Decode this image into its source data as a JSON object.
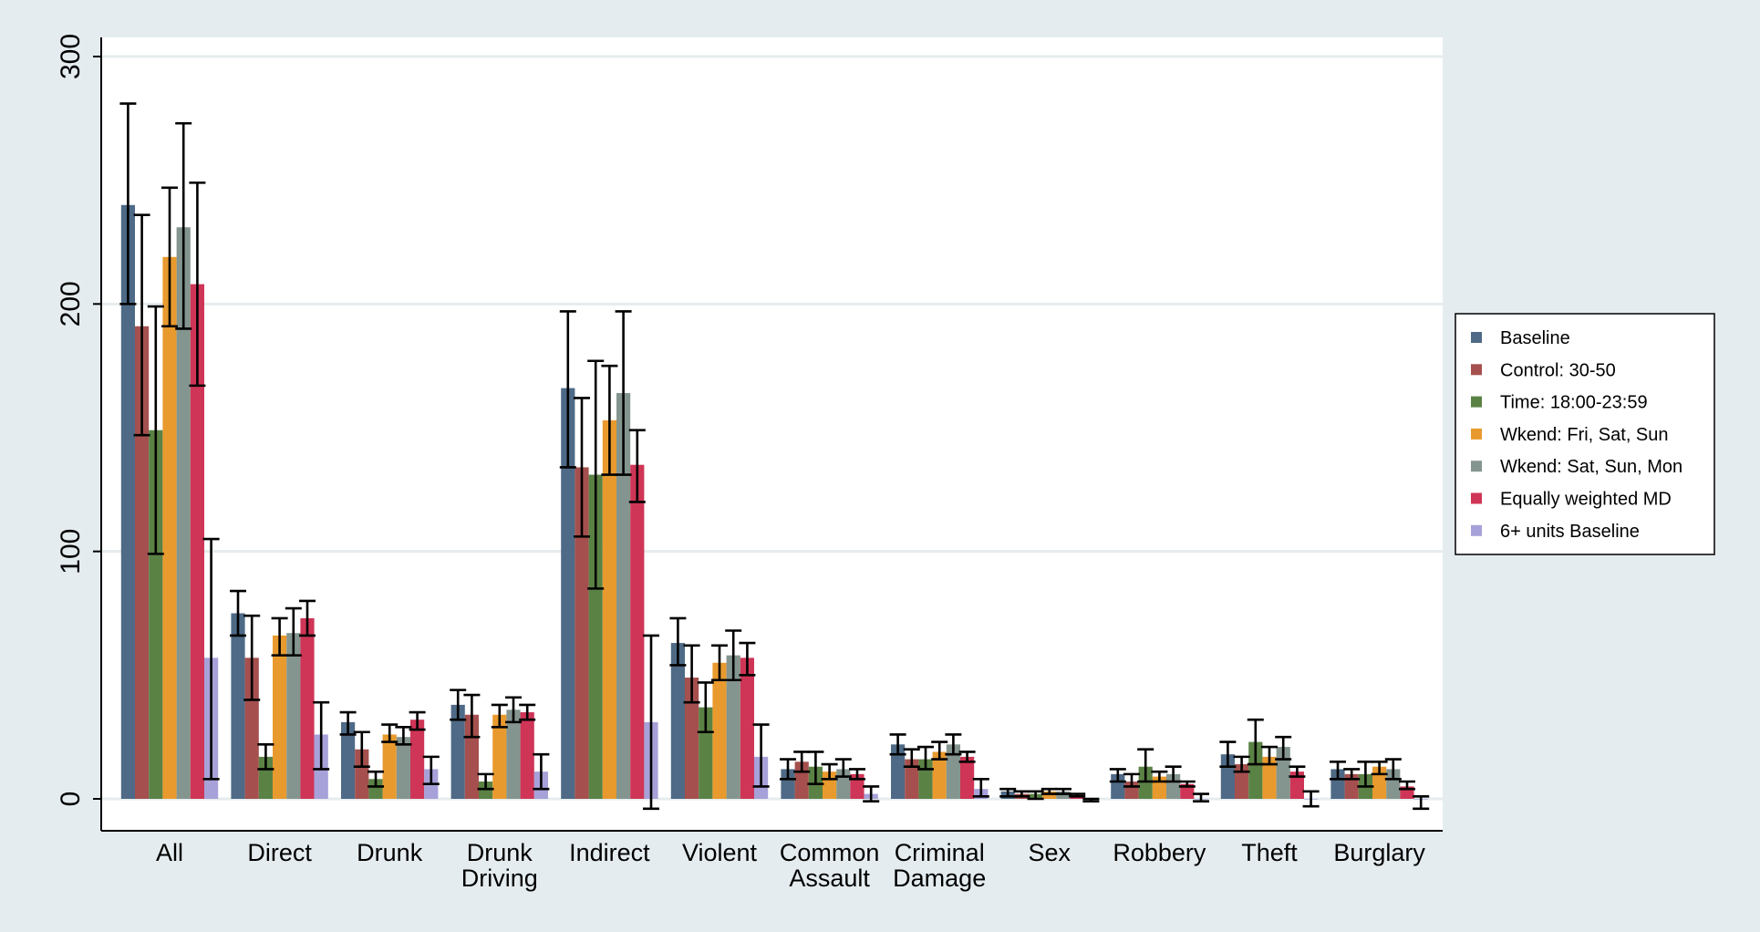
{
  "chart_data": {
    "type": "bar",
    "title": "",
    "xlabel": "",
    "ylabel": "",
    "ylim": [
      0,
      300
    ],
    "yticks": [
      0,
      100,
      200,
      300
    ],
    "grid": true,
    "legend_position": "right",
    "categories": [
      [
        "All"
      ],
      [
        "Direct"
      ],
      [
        "Drunk"
      ],
      [
        "Drunk",
        "Driving"
      ],
      [
        "Indirect"
      ],
      [
        "Violent"
      ],
      [
        "Common",
        "Assault"
      ],
      [
        "Criminal",
        "Damage"
      ],
      [
        "Sex"
      ],
      [
        "Robbery"
      ],
      [
        "Theft"
      ],
      [
        "Burglary"
      ]
    ],
    "series": [
      {
        "name": "Baseline",
        "color": "#4e6a86",
        "values": [
          240,
          75,
          31,
          38,
          166,
          63,
          12,
          22,
          3,
          10,
          18,
          12
        ],
        "ci_low": [
          200,
          66,
          26,
          32,
          134,
          54,
          8,
          18,
          1,
          7,
          13,
          8
        ],
        "ci_high": [
          281,
          84,
          35,
          44,
          197,
          73,
          16,
          26,
          4,
          12,
          23,
          15
        ]
      },
      {
        "name": "Control: 30-50",
        "color": "#a5504e",
        "values": [
          191,
          57,
          20,
          34,
          134,
          49,
          15,
          16,
          2,
          7,
          14,
          10
        ],
        "ci_low": [
          147,
          40,
          13,
          25,
          106,
          39,
          11,
          13,
          1,
          5,
          11,
          8
        ],
        "ci_high": [
          236,
          74,
          27,
          42,
          162,
          62,
          19,
          20,
          3,
          10,
          17,
          12
        ]
      },
      {
        "name": "Time: 18:00-23:59",
        "color": "#5a8245",
        "values": [
          149,
          17,
          8,
          7,
          131,
          37,
          13,
          16,
          2,
          13,
          23,
          10
        ],
        "ci_low": [
          99,
          12,
          5,
          4,
          85,
          27,
          6,
          12,
          0,
          7,
          14,
          5
        ],
        "ci_high": [
          199,
          22,
          11,
          10,
          177,
          47,
          19,
          21,
          3,
          20,
          32,
          15
        ]
      },
      {
        "name": "Wkend: Fri, Sat, Sun",
        "color": "#e89a2e",
        "values": [
          219,
          66,
          26,
          34,
          153,
          55,
          11,
          19,
          3,
          9,
          17,
          13
        ],
        "ci_low": [
          191,
          58,
          23,
          29,
          131,
          48,
          8,
          16,
          2,
          7,
          14,
          10
        ],
        "ci_high": [
          247,
          73,
          30,
          38,
          175,
          62,
          14,
          23,
          4,
          11,
          21,
          15
        ]
      },
      {
        "name": "Wkend: Sat, Sun, Mon",
        "color": "#84958f",
        "values": [
          231,
          67,
          25,
          36,
          164,
          58,
          12,
          22,
          3,
          10,
          21,
          12
        ],
        "ci_low": [
          190,
          58,
          22,
          31,
          131,
          48,
          9,
          18,
          2,
          7,
          16,
          8
        ],
        "ci_high": [
          273,
          77,
          29,
          41,
          197,
          68,
          16,
          26,
          4,
          13,
          25,
          16
        ]
      },
      {
        "name": "Equally weighted MD",
        "color": "#cf3556",
        "values": [
          208,
          73,
          32,
          35,
          135,
          57,
          10,
          17,
          1,
          6,
          11,
          5
        ],
        "ci_low": [
          167,
          66,
          28,
          32,
          120,
          50,
          8,
          15,
          1,
          5,
          9,
          4
        ],
        "ci_high": [
          249,
          80,
          35,
          38,
          149,
          63,
          12,
          19,
          2,
          7,
          13,
          7
        ]
      },
      {
        "name": "6+ units Baseline",
        "color": "#a7a1d9",
        "values": [
          57,
          26,
          12,
          11,
          31,
          17,
          2,
          4,
          0,
          0,
          0,
          0
        ],
        "ci_low": [
          8,
          12,
          6,
          4,
          -4,
          5,
          -1,
          1,
          -1,
          -1,
          -3,
          -4
        ],
        "ci_high": [
          105,
          39,
          17,
          18,
          66,
          30,
          5,
          8,
          0,
          2,
          3,
          1
        ]
      }
    ]
  }
}
